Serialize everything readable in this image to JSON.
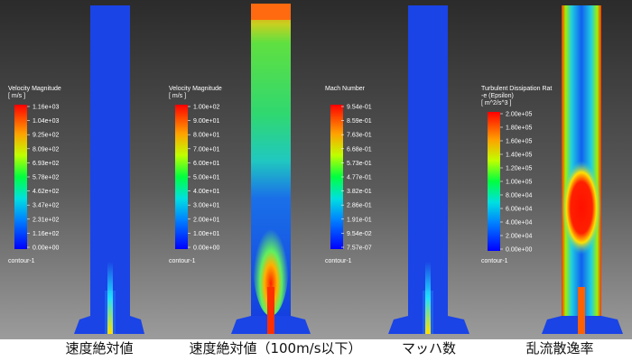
{
  "panels": [
    {
      "caption": "速度絶対値",
      "legend": {
        "title_lines": [
          "Velocity Magnitude",
          "[ m/s ]"
        ],
        "ticks": [
          "1.16e+03",
          "1.04e+03",
          "9.25e+02",
          "8.09e+02",
          "6.93e+02",
          "5.78e+02",
          "4.62e+02",
          "3.47e+02",
          "2.31e+02",
          "1.16e+02",
          "0.00e+00"
        ],
        "footer": "contour-1"
      }
    },
    {
      "caption": "速度絶対値（100m/s以下）",
      "legend": {
        "title_lines": [
          "Velocity Magnitude",
          "[ m/s ]"
        ],
        "ticks": [
          "1.00e+02",
          "9.00e+01",
          "8.00e+01",
          "7.00e+01",
          "6.00e+01",
          "5.00e+01",
          "4.00e+01",
          "3.00e+01",
          "2.00e+01",
          "1.00e+01",
          "0.00e+00"
        ],
        "footer": "contour-1"
      }
    },
    {
      "caption": "マッハ数",
      "legend": {
        "title_lines": [
          "Mach Number"
        ],
        "ticks": [
          "9.54e-01",
          "8.59e-01",
          "7.63e-01",
          "6.68e-01",
          "5.73e-01",
          "4.77e-01",
          "3.82e-01",
          "2.86e-01",
          "1.91e-01",
          "9.54e-02",
          "7.57e-07"
        ],
        "footer": "contour-1"
      }
    },
    {
      "caption": "乱流散逸率",
      "legend": {
        "title_lines": [
          "Turbulent Dissipation Rat",
          "-e (Epsilon)",
          "[ m^2/s^3 ]"
        ],
        "ticks": [
          "2.00e+05",
          "1.80e+05",
          "1.60e+05",
          "1.40e+05",
          "1.20e+05",
          "1.00e+05",
          "8.00e+04",
          "6.00e+04",
          "4.00e+04",
          "2.00e+04",
          "0.00e+00"
        ],
        "footer": "contour-1"
      }
    }
  ]
}
